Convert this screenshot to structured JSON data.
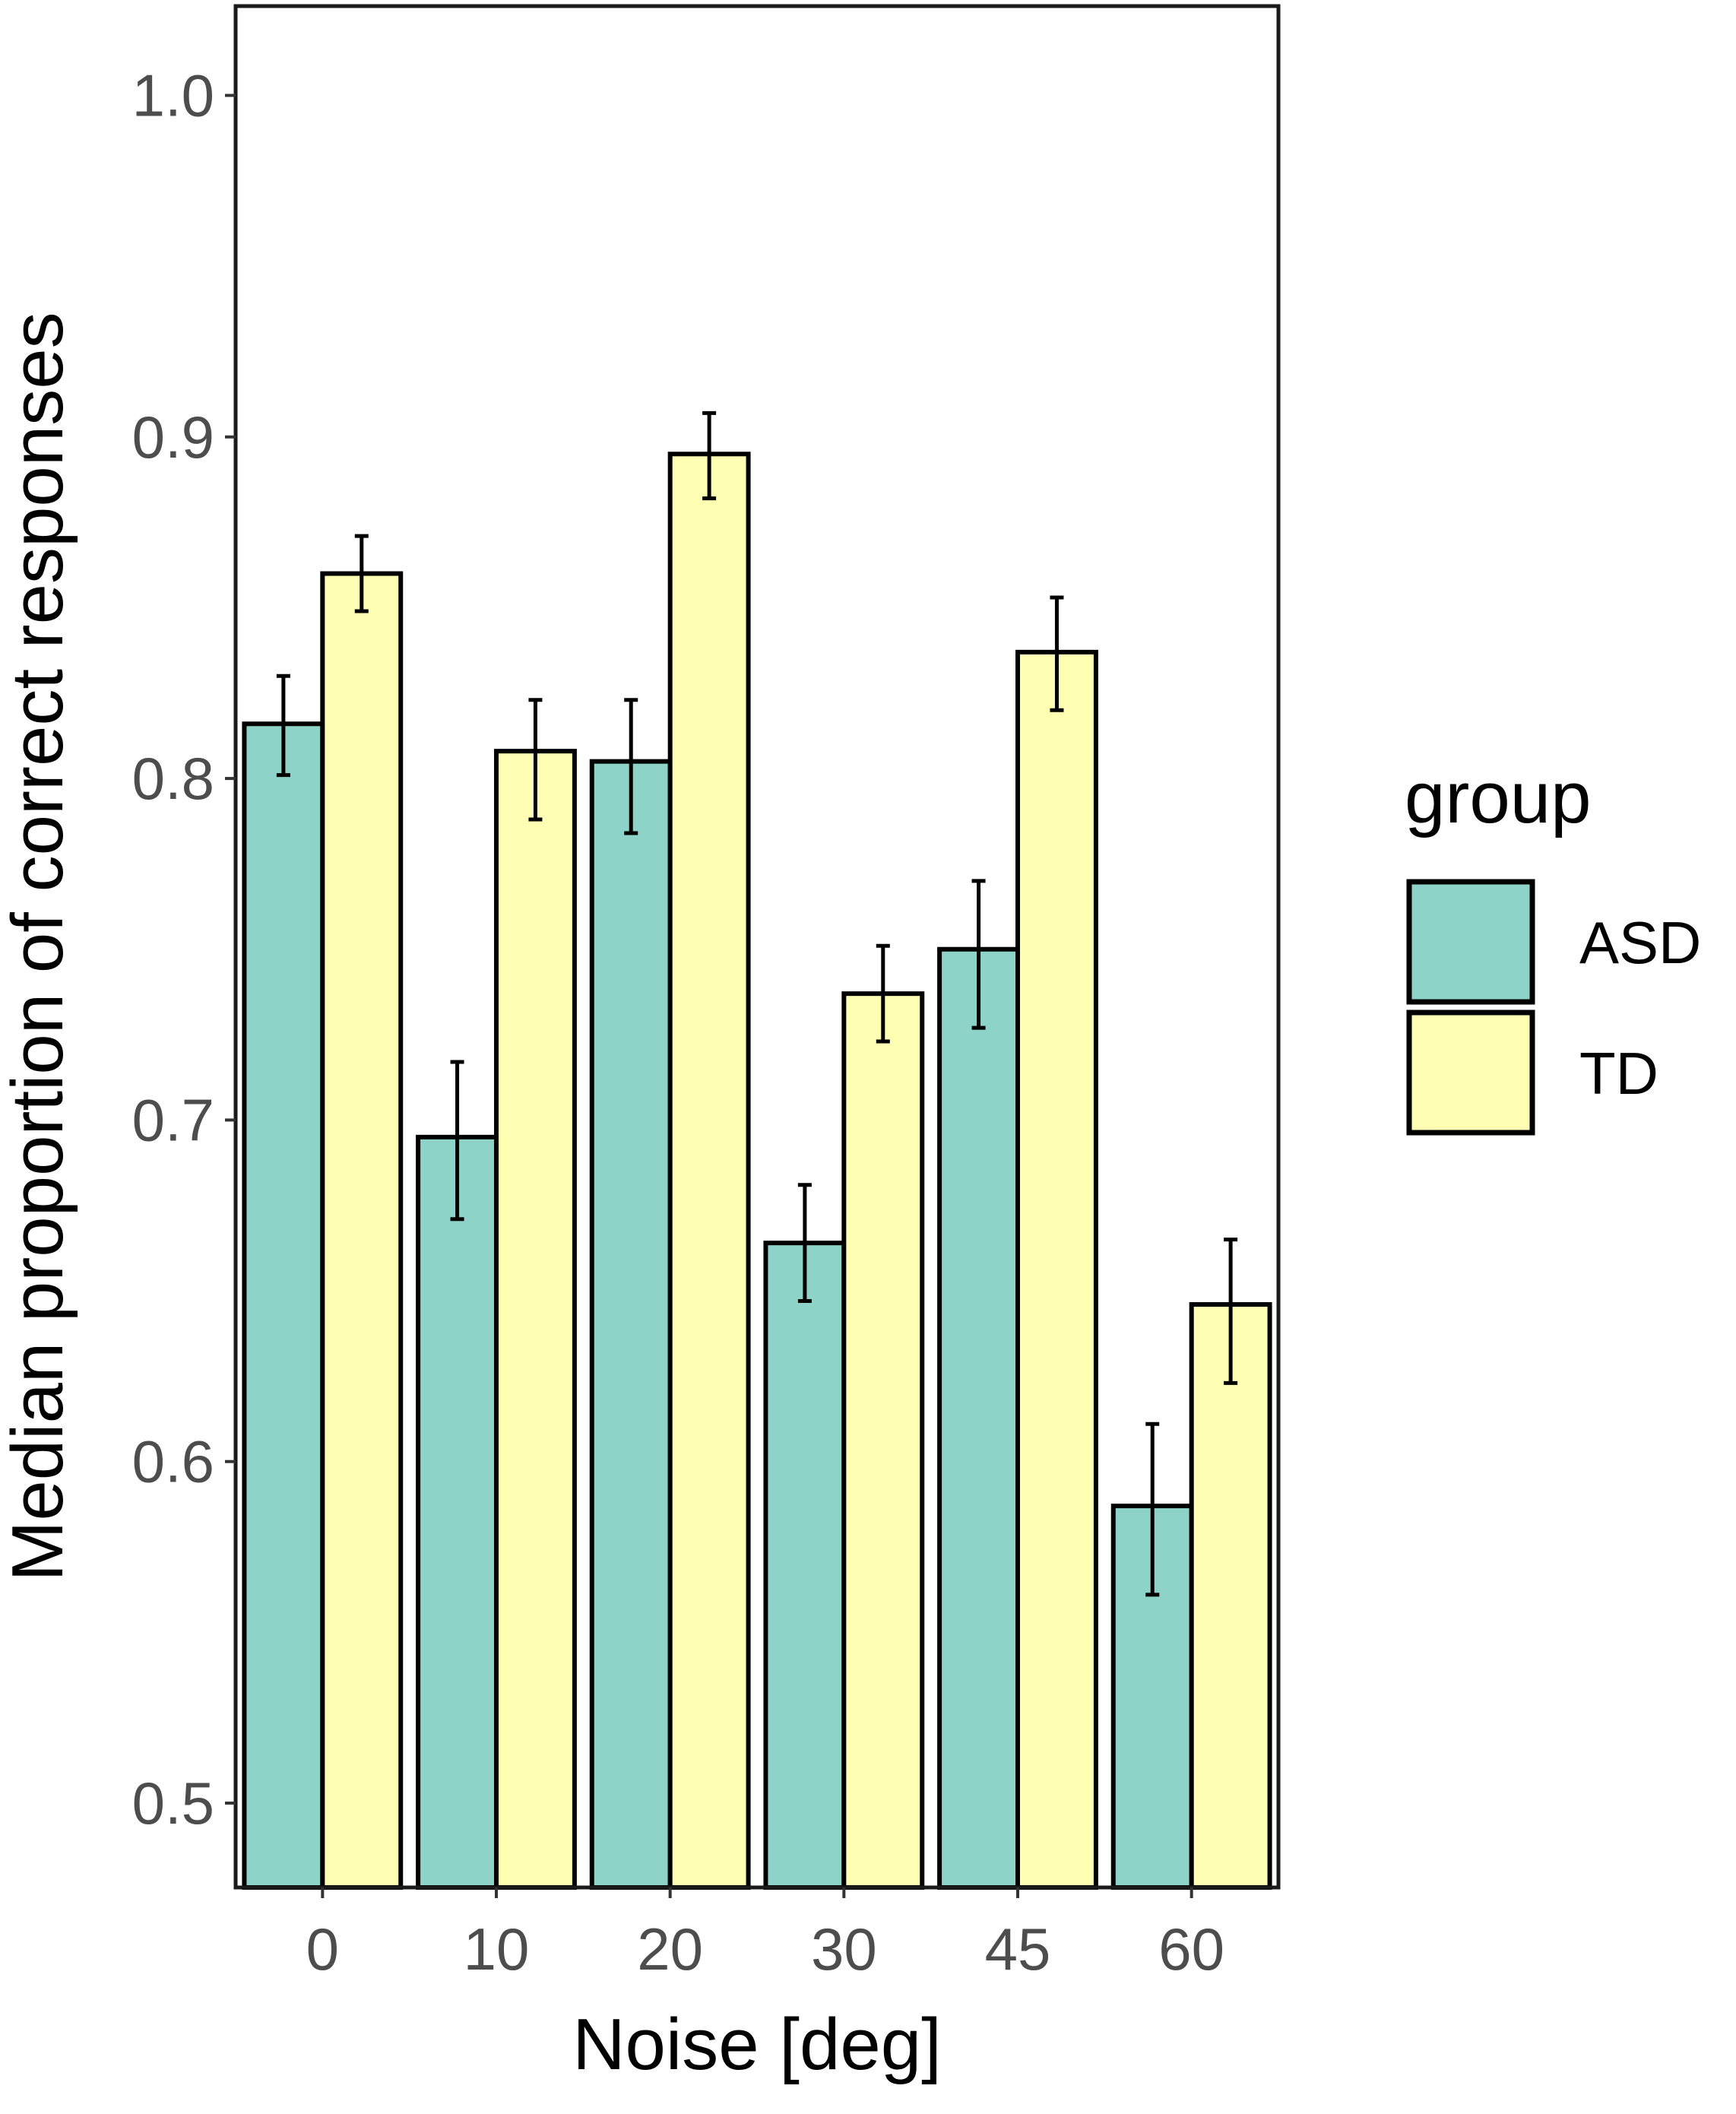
{
  "chart_data": {
    "type": "bar",
    "title": "",
    "xlabel": "Noise [deg]",
    "ylabel": "Median proportion of correct responses",
    "categories": [
      "0",
      "10",
      "20",
      "30",
      "45",
      "60"
    ],
    "ylim": [
      0.475,
      1.025
    ],
    "yticks": [
      0.5,
      0.6,
      0.7,
      0.8,
      0.9,
      1.0
    ],
    "ytick_labels": [
      "0.5",
      "0.6",
      "0.7",
      "0.8",
      "0.9",
      "1.0"
    ],
    "grid": false,
    "legend": {
      "title": "group",
      "position": "right"
    },
    "series": [
      {
        "name": "ASD",
        "color": "#8dd3c7",
        "values": [
          0.816,
          0.695,
          0.805,
          0.664,
          0.75,
          0.587
        ],
        "error_low": [
          0.801,
          0.671,
          0.784,
          0.647,
          0.727,
          0.561
        ],
        "error_high": [
          0.83,
          0.717,
          0.823,
          0.681,
          0.77,
          0.611
        ]
      },
      {
        "name": "TD",
        "color": "#ffffb3",
        "values": [
          0.86,
          0.808,
          0.895,
          0.737,
          0.837,
          0.646
        ],
        "error_low": [
          0.849,
          0.788,
          0.882,
          0.723,
          0.82,
          0.623
        ],
        "error_high": [
          0.871,
          0.823,
          0.907,
          0.751,
          0.853,
          0.665
        ]
      }
    ]
  }
}
